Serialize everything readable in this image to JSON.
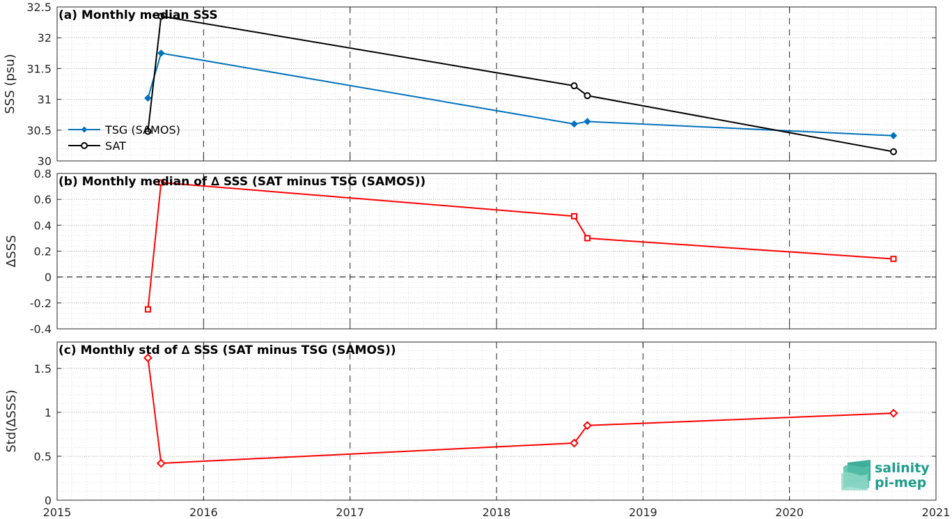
{
  "chart_data": [
    {
      "type": "line",
      "title": "(a) Monthly median SSS",
      "xlabel": "",
      "ylabel": "SSS (psu)",
      "xlim": [
        2015,
        2021
      ],
      "ylim": [
        30,
        32.5
      ],
      "yticks": [
        30,
        30.5,
        31,
        31.5,
        32,
        32.5
      ],
      "ytick_labels": [
        "30",
        "30.5",
        "31",
        "31.5",
        "32",
        "32.5"
      ],
      "grid": true,
      "legend": "left",
      "series": [
        {
          "name": "TSG (SAMOS)",
          "color": "#0072bd",
          "marker": "filled-diamond",
          "x": [
            2015.62,
            2015.71,
            2018.53,
            2018.62,
            2020.71
          ],
          "values": [
            31.02,
            31.75,
            30.6,
            30.64,
            30.41
          ]
        },
        {
          "name": "SAT",
          "color": "#000000",
          "marker": "open-circle",
          "x": [
            2015.62,
            2015.71,
            2018.53,
            2018.62,
            2020.71
          ],
          "values": [
            30.48,
            32.35,
            31.22,
            31.06,
            30.15
          ]
        }
      ]
    },
    {
      "type": "line",
      "title": "(b) Monthly median of ∆ SSS (SAT minus TSG (SAMOS))",
      "xlabel": "",
      "ylabel": "∆SSS",
      "xlim": [
        2015,
        2021
      ],
      "ylim": [
        -0.4,
        0.8
      ],
      "yticks": [
        -0.4,
        -0.2,
        0,
        0.2,
        0.4,
        0.6,
        0.8
      ],
      "ytick_labels": [
        "-0.4",
        "-0.2",
        "0",
        "0.2",
        "0.4",
        "0.6",
        "0.8"
      ],
      "grid": true,
      "zero_line": true,
      "series": [
        {
          "color": "#ff0000",
          "marker": "open-square",
          "x": [
            2015.62,
            2015.71,
            2018.53,
            2018.62,
            2020.71
          ],
          "values": [
            -0.25,
            0.73,
            0.47,
            0.3,
            0.14
          ]
        }
      ]
    },
    {
      "type": "line",
      "title": "(c) Monthly std of ∆ SSS (SAT minus TSG (SAMOS))",
      "xlabel": "",
      "ylabel": "Std(∆SSS)",
      "xlim": [
        2015,
        2021
      ],
      "ylim": [
        0,
        1.8
      ],
      "yticks": [
        0,
        0.5,
        1,
        1.5
      ],
      "ytick_labels": [
        "0",
        "0.5",
        "1",
        "1.5"
      ],
      "xticks": [
        2015,
        2016,
        2017,
        2018,
        2019,
        2020,
        2021
      ],
      "xtick_labels": [
        "2015",
        "2016",
        "2017",
        "2018",
        "2019",
        "2020",
        "2021"
      ],
      "grid": true,
      "series": [
        {
          "color": "#ff0000",
          "marker": "open-diamond",
          "x": [
            2015.62,
            2015.71,
            2018.53,
            2018.62,
            2020.71
          ],
          "values": [
            1.62,
            0.42,
            0.65,
            0.85,
            0.99
          ]
        }
      ]
    }
  ],
  "logo": {
    "line1": "salinity",
    "line2": "pi-mep",
    "color": "#1e9c8c"
  }
}
